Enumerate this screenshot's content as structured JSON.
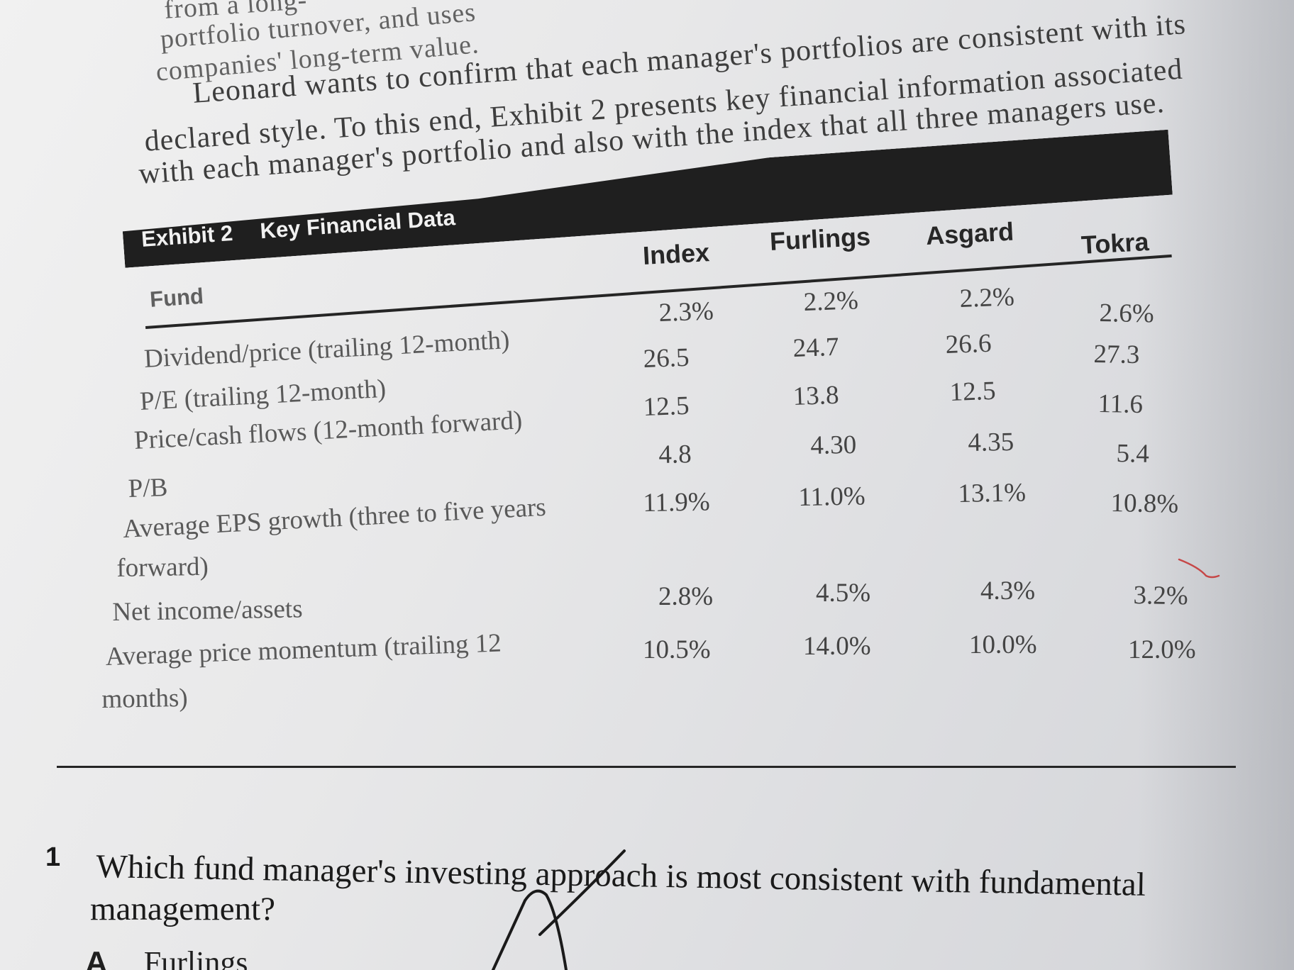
{
  "intro": {
    "line0": "from a long-",
    "line1a": "portfolio turnover, and uses",
    "line2": "companies' long-term value.",
    "line3": "Leonard wants to confirm that each manager's portfolios are consistent with its",
    "line4": "declared style. To this end, Exhibit 2 presents key financial information associated",
    "line5": "with each manager's portfolio and also with the index that all three managers use."
  },
  "exhibit": {
    "label": "Exhibit 2",
    "title": "Key Financial Data",
    "fund_header": "Fund",
    "columns": [
      "Index",
      "Furlings",
      "Asgard",
      "Tokra"
    ],
    "rows": [
      {
        "label_lines": [
          "Dividend/price (trailing 12-month)"
        ],
        "values": [
          "2.3%",
          "2.2%",
          "2.2%",
          "2.6%"
        ]
      },
      {
        "label_lines": [
          "P/E (trailing 12-month)"
        ],
        "values": [
          "26.5",
          "24.7",
          "26.6",
          "27.3"
        ]
      },
      {
        "label_lines": [
          "Price/cash flows (12-month forward)"
        ],
        "values": [
          "12.5",
          "13.8",
          "12.5",
          "11.6"
        ]
      },
      {
        "label_lines": [
          "P/B"
        ],
        "values": [
          "4.8",
          "4.30",
          "4.35",
          "5.4"
        ]
      },
      {
        "label_lines": [
          "Average EPS growth (three to five years",
          "forward)"
        ],
        "values": [
          "11.9%",
          "11.0%",
          "13.1%",
          "10.8%"
        ]
      },
      {
        "label_lines": [
          "Net income/assets"
        ],
        "values": [
          "2.8%",
          "4.5%",
          "4.3%",
          "3.2%"
        ]
      },
      {
        "label_lines": [
          "Average price momentum (trailing 12",
          "months)"
        ],
        "values": [
          "10.5%",
          "14.0%",
          "10.0%",
          "12.0%"
        ]
      }
    ]
  },
  "question": {
    "number": "1",
    "line1": "Which fund manager's investing approach is most consistent with fundamental",
    "line2": "management?",
    "option_a_letter": "A",
    "option_a_text": "Furlings"
  },
  "colors": {
    "page": "#e8e8e9",
    "ink": "#1a1a1a",
    "exhibit_band": "#1f1f1f",
    "red_mark": "#c64747"
  }
}
